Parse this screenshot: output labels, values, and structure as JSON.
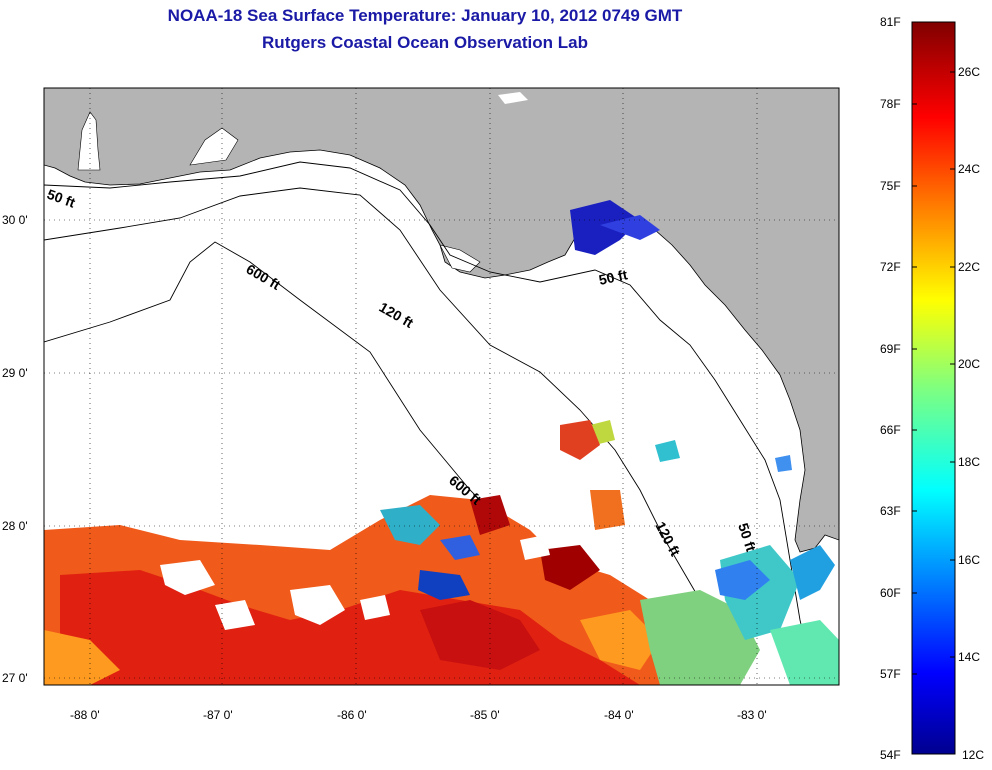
{
  "title_line1": "NOAA-18 Sea Surface Temperature:  January 10, 2012 0749 GMT",
  "title_line2": "Rutgers Coastal Ocean Observation Lab",
  "axes": {
    "lon_ticks": [
      "-88 0'",
      "-87 0'",
      "-86 0'",
      "-85 0'",
      "-84 0'",
      "-83 0'"
    ],
    "lat_ticks": [
      "30 0'",
      "29 0'",
      "28 0'",
      "27 0'"
    ]
  },
  "contour_labels": [
    "50 ft",
    "600 ft",
    "120 ft",
    "50 ft",
    "600 ft",
    "120 ft",
    "50 ft"
  ],
  "colorbar": {
    "fahrenheit": [
      "81F",
      "78F",
      "75F",
      "72F",
      "69F",
      "66F",
      "63F",
      "60F",
      "57F",
      "54F"
    ],
    "celsius": [
      "26C",
      "24C",
      "22C",
      "20C",
      "18C",
      "16C",
      "14C",
      "12C"
    ]
  },
  "colors": {
    "land": "#b4b4b4",
    "ocean_nodata": "#ffffff",
    "title": "#1a1aa6"
  }
}
